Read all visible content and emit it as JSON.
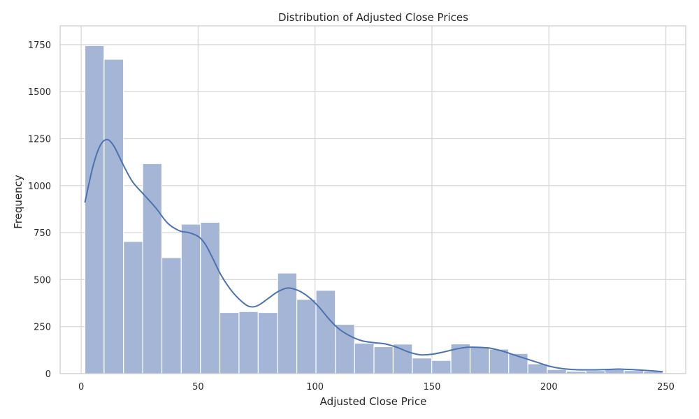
{
  "chart_data": {
    "type": "bar",
    "subtype": "histogram-with-kde",
    "title": "Distribution of Adjusted Close Prices",
    "xlabel": "Adjusted Close Price",
    "ylabel": "Frequency",
    "xlim": [
      -9,
      258.5
    ],
    "ylim": [
      0,
      1850
    ],
    "xticks": [
      0,
      50,
      100,
      150,
      200,
      250
    ],
    "yticks": [
      0,
      250,
      500,
      750,
      1000,
      1250,
      1500,
      1750
    ],
    "grid": true,
    "legend": "none",
    "bar_color": "#a4b5d6",
    "line_color": "#4c72b0",
    "bins": [
      {
        "start": 1.6,
        "end": 9.8,
        "count": 1745
      },
      {
        "start": 9.8,
        "end": 18.1,
        "count": 1672
      },
      {
        "start": 18.1,
        "end": 26.3,
        "count": 703
      },
      {
        "start": 26.3,
        "end": 34.5,
        "count": 1117
      },
      {
        "start": 34.5,
        "end": 42.8,
        "count": 617
      },
      {
        "start": 42.8,
        "end": 51.0,
        "count": 795
      },
      {
        "start": 51.0,
        "end": 59.3,
        "count": 805
      },
      {
        "start": 59.3,
        "end": 67.5,
        "count": 325
      },
      {
        "start": 67.5,
        "end": 75.7,
        "count": 330
      },
      {
        "start": 75.7,
        "end": 84.0,
        "count": 325
      },
      {
        "start": 84.0,
        "end": 92.2,
        "count": 535
      },
      {
        "start": 92.2,
        "end": 100.4,
        "count": 395
      },
      {
        "start": 100.4,
        "end": 108.7,
        "count": 443
      },
      {
        "start": 108.7,
        "end": 116.9,
        "count": 262
      },
      {
        "start": 116.9,
        "end": 125.2,
        "count": 162
      },
      {
        "start": 125.2,
        "end": 133.4,
        "count": 143
      },
      {
        "start": 133.4,
        "end": 141.6,
        "count": 157
      },
      {
        "start": 141.6,
        "end": 149.9,
        "count": 83
      },
      {
        "start": 149.9,
        "end": 158.1,
        "count": 70
      },
      {
        "start": 158.1,
        "end": 166.3,
        "count": 158
      },
      {
        "start": 166.3,
        "end": 174.6,
        "count": 143
      },
      {
        "start": 174.6,
        "end": 182.8,
        "count": 130
      },
      {
        "start": 182.8,
        "end": 191.0,
        "count": 107
      },
      {
        "start": 191.0,
        "end": 199.3,
        "count": 52
      },
      {
        "start": 199.3,
        "end": 207.5,
        "count": 22
      },
      {
        "start": 207.5,
        "end": 215.8,
        "count": 12
      },
      {
        "start": 215.8,
        "end": 224.0,
        "count": 16
      },
      {
        "start": 224.0,
        "end": 232.2,
        "count": 22
      },
      {
        "start": 232.2,
        "end": 240.5,
        "count": 16
      },
      {
        "start": 240.5,
        "end": 248.7,
        "count": 12
      }
    ],
    "kde": {
      "x": [
        1.6,
        5,
        8,
        11,
        14,
        18,
        22,
        27,
        32,
        37,
        42,
        46,
        50,
        53,
        56,
        60,
        65,
        70,
        73,
        76,
        80,
        84,
        88,
        91,
        94,
        98,
        102,
        106,
        110,
        115,
        120,
        125,
        130,
        135,
        140,
        145,
        150,
        155,
        160,
        165,
        170,
        175,
        180,
        185,
        190,
        195,
        200,
        205,
        210,
        215,
        220,
        225,
        230,
        235,
        240,
        245,
        248.7
      ],
      "y": [
        910,
        1100,
        1210,
        1245,
        1210,
        1110,
        1020,
        950,
        880,
        800,
        760,
        750,
        730,
        690,
        620,
        520,
        430,
        370,
        355,
        365,
        400,
        435,
        455,
        450,
        435,
        400,
        350,
        290,
        240,
        200,
        175,
        165,
        158,
        140,
        115,
        100,
        103,
        115,
        130,
        140,
        140,
        135,
        120,
        100,
        80,
        60,
        40,
        28,
        22,
        20,
        20,
        22,
        24,
        22,
        18,
        14,
        10
      ]
    }
  }
}
